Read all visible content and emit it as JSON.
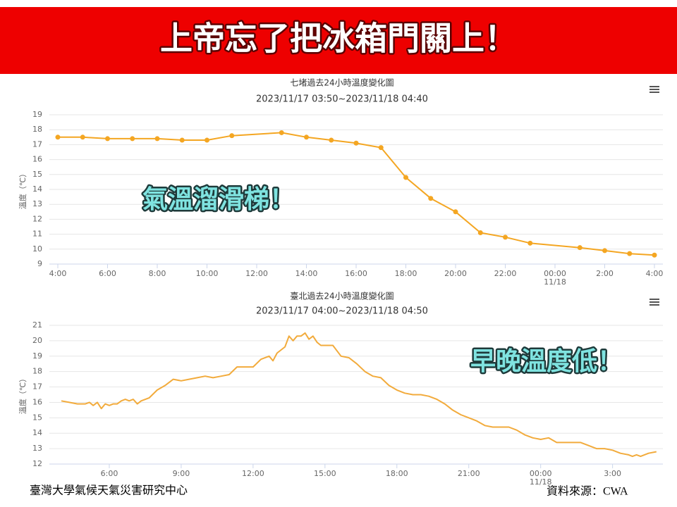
{
  "header": {
    "title": "上帝忘了把冰箱門關上！"
  },
  "chart_data": [
    {
      "type": "line",
      "title": "七堵過去24小時溫度變化圖",
      "subtitle": "2023/11/17 03:50~2023/11/18 04:40",
      "y_label": "溫度（℃）",
      "annotation": "氣溫溜滑梯！",
      "color": "#f4a622",
      "markers": true,
      "grid": true,
      "x": [
        4,
        5,
        6,
        7,
        8,
        9,
        10,
        11,
        13,
        14,
        15,
        16,
        17,
        18,
        19,
        20,
        21,
        22,
        23,
        25,
        26,
        27,
        28
      ],
      "values": [
        17.5,
        17.5,
        17.4,
        17.4,
        17.4,
        17.3,
        17.3,
        17.6,
        17.8,
        17.5,
        17.3,
        17.1,
        16.8,
        14.8,
        13.4,
        12.5,
        11.1,
        10.8,
        10.4,
        10.1,
        9.9,
        9.7,
        9.6
      ],
      "xlim": [
        3.66,
        28.34
      ],
      "xticks": [
        {
          "value": 4,
          "label": "4:00"
        },
        {
          "value": 6,
          "label": "6:00"
        },
        {
          "value": 8,
          "label": "8:00"
        },
        {
          "value": 10,
          "label": "10:00"
        },
        {
          "value": 12,
          "label": "12:00"
        },
        {
          "value": 14,
          "label": "14:00"
        },
        {
          "value": 16,
          "label": "16:00"
        },
        {
          "value": 18,
          "label": "18:00"
        },
        {
          "value": 20,
          "label": "20:00"
        },
        {
          "value": 22,
          "label": "22:00"
        },
        {
          "value": 24,
          "label": "00:00",
          "sublabel": "11/18"
        },
        {
          "value": 26,
          "label": "2:00"
        },
        {
          "value": 28,
          "label": "4:00"
        }
      ],
      "ylim": [
        9,
        19
      ],
      "yticks": [
        9,
        10,
        11,
        12,
        13,
        14,
        15,
        16,
        17,
        18,
        19
      ]
    },
    {
      "type": "line",
      "title": "臺北過去24小時溫度變化圖",
      "subtitle": "2023/11/17 04:00~2023/11/18 04:50",
      "y_label": "溫度（℃）",
      "annotation": "早晚溫度低！",
      "color": "#f2ab3c",
      "markers": false,
      "grid": true,
      "x": [
        4.0,
        4.33,
        4.67,
        5.0,
        5.17,
        5.33,
        5.5,
        5.67,
        5.83,
        6.0,
        6.17,
        6.33,
        6.5,
        6.67,
        6.83,
        7.0,
        7.17,
        7.33,
        7.67,
        8.0,
        8.33,
        8.67,
        9.0,
        9.33,
        9.67,
        10.0,
        10.33,
        10.67,
        11.0,
        11.33,
        11.67,
        12.0,
        12.33,
        12.67,
        12.83,
        13.0,
        13.33,
        13.5,
        13.67,
        13.83,
        14.0,
        14.17,
        14.33,
        14.5,
        14.67,
        14.83,
        15.0,
        15.33,
        15.67,
        16.0,
        16.33,
        16.67,
        17.0,
        17.33,
        17.67,
        18.0,
        18.33,
        18.67,
        19.0,
        19.33,
        19.67,
        20.0,
        20.33,
        20.67,
        21.0,
        21.33,
        21.67,
        22.0,
        22.33,
        22.67,
        23.0,
        23.33,
        23.67,
        24.0,
        24.33,
        24.67,
        25.0,
        25.33,
        25.67,
        26.0,
        26.33,
        26.67,
        27.0,
        27.33,
        27.67,
        27.83,
        28.0,
        28.17,
        28.5,
        28.83
      ],
      "values": [
        16.1,
        16.0,
        15.9,
        15.9,
        16.0,
        15.8,
        16.0,
        15.6,
        15.9,
        15.8,
        15.9,
        15.9,
        16.1,
        16.2,
        16.1,
        16.2,
        15.9,
        16.1,
        16.3,
        16.8,
        17.1,
        17.5,
        17.4,
        17.5,
        17.6,
        17.7,
        17.6,
        17.7,
        17.8,
        18.3,
        18.3,
        18.3,
        18.8,
        19.0,
        18.7,
        19.2,
        19.6,
        20.3,
        20.0,
        20.3,
        20.3,
        20.5,
        20.1,
        20.3,
        19.9,
        19.7,
        19.7,
        19.7,
        19.0,
        18.9,
        18.5,
        18.0,
        17.7,
        17.6,
        17.1,
        16.8,
        16.6,
        16.5,
        16.5,
        16.4,
        16.2,
        15.9,
        15.5,
        15.2,
        15.0,
        14.8,
        14.5,
        14.4,
        14.4,
        14.4,
        14.2,
        13.9,
        13.7,
        13.6,
        13.7,
        13.4,
        13.4,
        13.4,
        13.4,
        13.2,
        13.0,
        13.0,
        12.9,
        12.7,
        12.6,
        12.5,
        12.6,
        12.5,
        12.7,
        12.8
      ],
      "xlim": [
        3.5,
        29.1
      ],
      "xticks": [
        {
          "value": 6,
          "label": "6:00"
        },
        {
          "value": 9,
          "label": "9:00"
        },
        {
          "value": 12,
          "label": "12:00"
        },
        {
          "value": 15,
          "label": "15:00"
        },
        {
          "value": 18,
          "label": "18:00"
        },
        {
          "value": 21,
          "label": "21:00"
        },
        {
          "value": 24,
          "label": "00:00",
          "sublabel": "11/18"
        },
        {
          "value": 27,
          "label": "3:00"
        }
      ],
      "ylim": [
        12,
        21
      ],
      "yticks": [
        12,
        13,
        14,
        15,
        16,
        17,
        18,
        19,
        20,
        21
      ]
    }
  ],
  "footer": {
    "left": "臺灣大學氣候天氣災害研究中心",
    "right": "資料來源：CWA"
  }
}
